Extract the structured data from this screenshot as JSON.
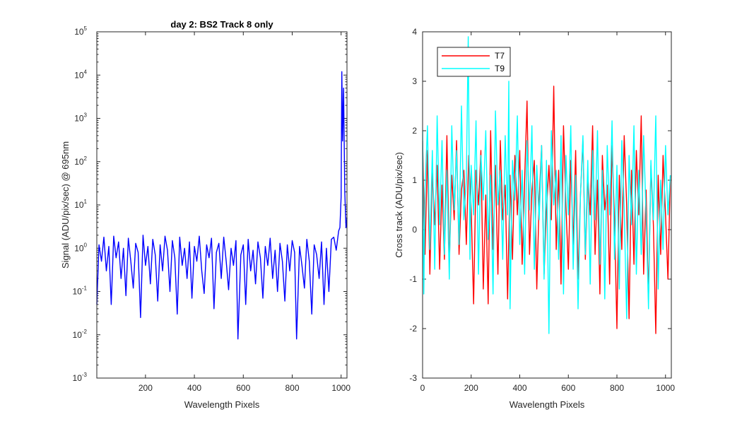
{
  "chart_data": [
    {
      "type": "line",
      "title": "day 2: BS2   Track 8 only",
      "xlabel": "Wavelength Pixels",
      "ylabel": "Signal (ADU/pix/sec) @ 695nm",
      "xlim": [
        1,
        1024
      ],
      "ylim": [
        0.001,
        100000
      ],
      "yscale": "log",
      "grid": false,
      "xticks": [
        200,
        400,
        600,
        800,
        1000
      ],
      "yticks": [
        {
          "value": 0.001,
          "base": "10",
          "exp": "-3"
        },
        {
          "value": 0.01,
          "base": "10",
          "exp": "-2"
        },
        {
          "value": 0.1,
          "base": "10",
          "exp": "-1"
        },
        {
          "value": 1,
          "base": "10",
          "exp": "0"
        },
        {
          "value": 10,
          "base": "10",
          "exp": "1"
        },
        {
          "value": 100,
          "base": "10",
          "exp": "2"
        },
        {
          "value": 1000,
          "base": "10",
          "exp": "3"
        },
        {
          "value": 10000,
          "base": "10",
          "exp": "4"
        },
        {
          "value": 100000,
          "base": "10",
          "exp": "5"
        }
      ],
      "series": [
        {
          "color": "#0000ff",
          "description": "noisy baseline near 1 with spikes; sharp peak near pixel 1003",
          "x": [
            1,
            10,
            20,
            30,
            40,
            50,
            60,
            70,
            80,
            90,
            100,
            110,
            120,
            130,
            140,
            150,
            160,
            170,
            180,
            190,
            200,
            210,
            220,
            230,
            240,
            250,
            260,
            270,
            280,
            290,
            300,
            310,
            320,
            330,
            340,
            350,
            360,
            370,
            380,
            390,
            400,
            410,
            420,
            430,
            440,
            450,
            460,
            470,
            480,
            490,
            500,
            510,
            520,
            530,
            540,
            550,
            560,
            570,
            578,
            590,
            600,
            610,
            620,
            630,
            640,
            650,
            660,
            670,
            680,
            690,
            700,
            710,
            720,
            730,
            740,
            750,
            760,
            770,
            780,
            790,
            800,
            810,
            818,
            830,
            840,
            850,
            860,
            870,
            880,
            890,
            900,
            910,
            920,
            930,
            940,
            950,
            960,
            970,
            980,
            990,
            995,
            1000,
            1003,
            1006,
            1010,
            1015,
            1020,
            1024
          ],
          "y": [
            0.05,
            1.2,
            0.5,
            1.8,
            0.3,
            1.1,
            0.05,
            1.9,
            0.6,
            1.4,
            0.2,
            1.0,
            0.08,
            1.7,
            0.5,
            0.12,
            1.3,
            0.8,
            0.025,
            2.0,
            0.4,
            1.1,
            0.15,
            1.6,
            0.7,
            0.06,
            1.2,
            0.3,
            1.9,
            0.9,
            0.1,
            1.5,
            0.6,
            0.03,
            1.8,
            0.4,
            1.0,
            0.2,
            1.4,
            0.07,
            1.1,
            0.5,
            1.9,
            0.3,
            0.09,
            1.2,
            0.6,
            1.7,
            0.04,
            0.8,
            1.3,
            0.2,
            1.8,
            0.5,
            0.11,
            1.0,
            0.4,
            1.5,
            0.008,
            0.7,
            1.2,
            0.05,
            1.6,
            0.3,
            0.9,
            0.15,
            1.4,
            0.6,
            0.07,
            1.1,
            0.4,
            1.7,
            0.2,
            0.9,
            0.1,
            1.3,
            0.5,
            0.06,
            1.2,
            0.3,
            1.5,
            0.8,
            0.008,
            1.1,
            0.4,
            0.12,
            1.6,
            0.5,
            0.03,
            1.2,
            0.7,
            0.2,
            1.4,
            0.05,
            1.0,
            0.1,
            1.6,
            1.8,
            0.9,
            2.5,
            3.0,
            15.0,
            12000.0,
            300.0,
            5000.0,
            20.0,
            3.0,
            5.0
          ]
        }
      ]
    },
    {
      "type": "line",
      "title": "",
      "xlabel": "Wavelength Pixels",
      "ylabel": "Cross track (ADU/pix/sec)",
      "xlim": [
        0,
        1024
      ],
      "ylim": [
        -3,
        4
      ],
      "grid": false,
      "legend": "top-left",
      "xticks": [
        0,
        200,
        400,
        600,
        800,
        1000
      ],
      "yticks": [
        -3,
        -2,
        -1,
        0,
        1,
        2,
        3,
        4
      ],
      "series": [
        {
          "name": "T7",
          "color": "#ff0000",
          "x": [
            0,
            10,
            20,
            30,
            40,
            50,
            60,
            70,
            80,
            90,
            100,
            110,
            120,
            130,
            140,
            150,
            160,
            170,
            180,
            190,
            200,
            210,
            220,
            230,
            240,
            250,
            260,
            270,
            280,
            290,
            300,
            310,
            320,
            330,
            340,
            350,
            360,
            370,
            380,
            390,
            400,
            410,
            420,
            430,
            440,
            450,
            460,
            470,
            480,
            490,
            500,
            510,
            520,
            530,
            540,
            550,
            560,
            570,
            580,
            590,
            600,
            610,
            620,
            630,
            640,
            650,
            660,
            670,
            680,
            690,
            700,
            710,
            720,
            730,
            740,
            750,
            760,
            770,
            780,
            790,
            800,
            810,
            820,
            830,
            840,
            850,
            860,
            870,
            880,
            890,
            900,
            910,
            920,
            930,
            940,
            950,
            960,
            970,
            980,
            990,
            1000,
            1010,
            1020
          ],
          "y": [
            1.8,
            -0.5,
            1.6,
            -0.9,
            1.2,
            0.1,
            1.3,
            -0.8,
            0.9,
            -0.6,
            1.9,
            -0.7,
            1.1,
            0.2,
            1.8,
            -0.5,
            0.8,
            1.2,
            -0.3,
            1.5,
            0.4,
            -1.5,
            1.2,
            0.5,
            1.6,
            -1.2,
            0.7,
            -1.5,
            2.0,
            -0.4,
            1.3,
            -0.9,
            1.8,
            0.2,
            0.9,
            -1.4,
            1.1,
            -0.6,
            1.5,
            0.3,
            1.6,
            -0.7,
            1.0,
            2.6,
            -0.5,
            0.8,
            1.4,
            -1.2,
            0.6,
            1.7,
            -0.9,
            0.4,
            1.3,
            0.2,
            2.9,
            -0.4,
            1.2,
            -1.1,
            2.1,
            0.5,
            -0.8,
            1.4,
            -0.3,
            1.6,
            -1.0,
            0.7,
            1.8,
            -0.6,
            1.1,
            0.3,
            2.1,
            -0.5,
            1.0,
            -1.3,
            1.5,
            0.4,
            0.9,
            -1.1,
            1.7,
            0.2,
            -2.0,
            1.1,
            -0.4,
            1.9,
            0.5,
            -1.8,
            1.2,
            -0.7,
            1.6,
            0.3,
            2.3,
            -0.9,
            0.8,
            -1.4,
            1.3,
            0.1,
            -2.1,
            1.1,
            -0.5,
            1.5,
            0.3,
            -1.0,
            1.1
          ]
        },
        {
          "name": "T9",
          "color": "#00ffff",
          "x": [
            0,
            5,
            10,
            20,
            30,
            40,
            50,
            60,
            70,
            80,
            90,
            100,
            110,
            120,
            130,
            140,
            150,
            160,
            170,
            180,
            188,
            195,
            200,
            210,
            220,
            230,
            240,
            250,
            260,
            270,
            280,
            290,
            300,
            310,
            320,
            330,
            340,
            350,
            355,
            360,
            370,
            380,
            390,
            400,
            410,
            420,
            430,
            440,
            450,
            460,
            470,
            480,
            490,
            500,
            510,
            520,
            530,
            540,
            550,
            560,
            570,
            580,
            590,
            600,
            610,
            620,
            630,
            640,
            650,
            660,
            670,
            680,
            690,
            700,
            710,
            720,
            730,
            740,
            750,
            760,
            770,
            780,
            790,
            800,
            810,
            820,
            830,
            840,
            850,
            860,
            870,
            880,
            890,
            900,
            910,
            920,
            930,
            940,
            950,
            960,
            970,
            980,
            990,
            1000,
            1010,
            1020
          ],
          "y": [
            2.0,
            -1.3,
            0.8,
            2.1,
            -0.4,
            1.6,
            -0.8,
            2.3,
            0.1,
            1.8,
            -0.5,
            1.2,
            -1.0,
            2.1,
            0.4,
            1.6,
            -0.3,
            2.5,
            0.2,
            1.0,
            3.9,
            -0.6,
            1.3,
            0.3,
            2.2,
            -0.9,
            1.5,
            0.6,
            2.0,
            -0.2,
            1.1,
            -1.3,
            2.4,
            0.5,
            1.2,
            -0.6,
            1.9,
            0.3,
            3.0,
            -1.6,
            1.4,
            0.6,
            2.3,
            -0.3,
            1.2,
            -0.9,
            1.8,
            0.4,
            2.1,
            -0.8,
            1.3,
            0.2,
            1.7,
            -1.0,
            1.4,
            -2.1,
            2.0,
            0.5,
            1.2,
            -0.6,
            1.9,
            -1.3,
            1.5,
            0.3,
            2.1,
            -0.8,
            1.1,
            -1.6,
            0.7,
            1.9,
            -0.5,
            1.4,
            -1.1,
            1.6,
            0.2,
            2.0,
            -0.7,
            1.2,
            -1.4,
            1.7,
            0.3,
            2.2,
            -0.6,
            1.3,
            -1.2,
            1.8,
            0.4,
            -1.8,
            1.5,
            0.1,
            2.1,
            -0.9,
            1.2,
            -0.5,
            1.9,
            0.3,
            -1.6,
            1.4,
            0.2,
            2.3,
            -1.2,
            1.0,
            -0.4,
            1.7,
            0.3,
            1.1
          ]
        }
      ]
    }
  ]
}
